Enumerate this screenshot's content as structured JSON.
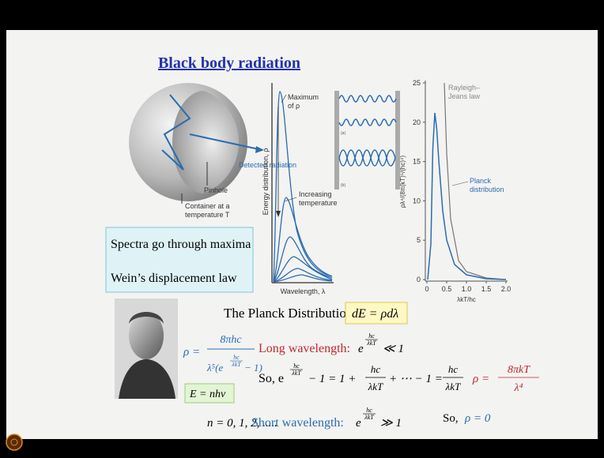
{
  "title": "Black body radiation",
  "cavity_figure": {
    "labels": [
      "Detected radiation",
      "Pinhole",
      "Container at a",
      "temperature T"
    ]
  },
  "notes": [
    "Spectra go through maxima",
    "Wein’s displacement law"
  ],
  "spectrum_figure": {
    "y_label": "Energy distribution, ρ",
    "x_label": "Wavelength, λ",
    "maximum_label": [
      "Maximum",
      "of ρ"
    ],
    "temperature_label": [
      "Increasing",
      "temperature"
    ]
  },
  "wave_figure": {
    "labels": [
      "(a)",
      "(b)"
    ]
  },
  "planck_plot": {
    "y_label": "ρλ⁴/(8π(kT)⁵/(hc)⁴)",
    "x_label": "λkT/hc",
    "rayleigh_label": [
      "Rayleigh–",
      "Jeans law"
    ],
    "planck_label": [
      "Planck",
      "distribution"
    ],
    "xlim": [
      0,
      2
    ],
    "ylim": [
      0,
      25
    ],
    "xticks": [
      0,
      0.5,
      {
        "value": 1,
        "label": "1.0"
      },
      1.5,
      {
        "value": 2,
        "label": "2.0"
      }
    ],
    "yticks": [
      0,
      5,
      10,
      15,
      20,
      25
    ]
  },
  "planck_section": {
    "heading": "The Planck Distribution:",
    "boxed": "dE = ρdλ",
    "rho_formula": {
      "lhs": "ρ =",
      "numerator": "8πhc",
      "denominator": "λ⁵(e",
      "exp_num": "hc",
      "exp_den": "λkT",
      "tail": "− 1)"
    },
    "energy": "E = nhν",
    "n_values": "n = 0, 1, 2, .....",
    "long": {
      "label": "Long wavelength:",
      "base": "e",
      "exp_num": "hc",
      "exp_den": "λkT",
      "relation": "≪ 1"
    },
    "expansion": {
      "start": "So, e",
      "exp_num": "hc",
      "exp_den": "λkT",
      "middle": "− 1 = 1 +",
      "f1_num": "hc",
      "f1_den": "λkT",
      "after": "+ ⋯ − 1 =",
      "f2_num": "hc",
      "f2_den": "λkT",
      "rho": "ρ =",
      "rho_num": "8πkT",
      "rho_den": "λ⁴"
    },
    "short": {
      "label": "Short wavelength:",
      "base": "e",
      "exp_num": "hc",
      "exp_den": "λkT",
      "relation": "≫ 1"
    },
    "short_result": {
      "so": "So,",
      "rho": "ρ = 0"
    }
  }
}
